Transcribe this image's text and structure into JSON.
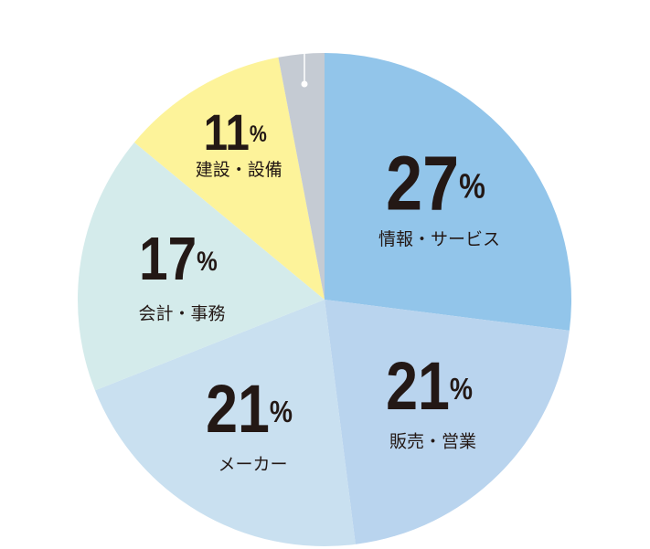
{
  "chart_data": {
    "type": "pie",
    "categories": [
      "情報・サービス",
      "販売・営業",
      "メーカー",
      "会計・事務",
      "建設・設備",
      null
    ],
    "values": [
      27,
      21,
      21,
      17,
      11,
      3
    ],
    "value_labels": [
      "27%",
      "21%",
      "21%",
      "17%",
      "11%",
      null
    ],
    "colors": [
      "#92c5ea",
      "#b9d4ee",
      "#c9e0f0",
      "#d4ebeb",
      "#fdf39a",
      "#c5cbd3"
    ]
  }
}
